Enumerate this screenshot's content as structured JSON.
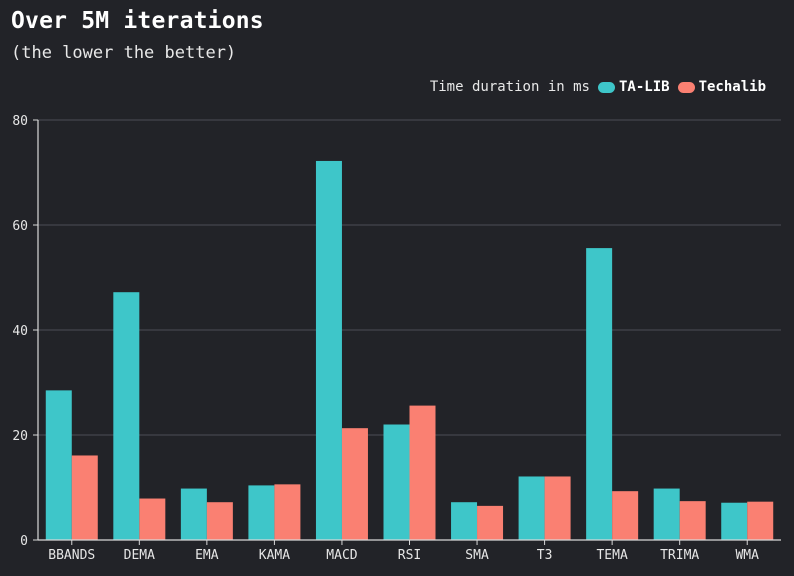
{
  "chart_data": {
    "type": "bar",
    "title": "Over 5M iterations",
    "subtitle": "(the lower the better)",
    "legend_title": "Time duration in ms",
    "legend_position": "top-right",
    "grid": true,
    "ylim": [
      0,
      80
    ],
    "yticks": [
      0,
      20,
      40,
      60,
      80
    ],
    "categories": [
      "BBANDS",
      "DEMA",
      "EMA",
      "KAMA",
      "MACD",
      "RSI",
      "SMA",
      "T3",
      "TEMA",
      "TRIMA",
      "WMA"
    ],
    "series": [
      {
        "name": "TA-LIB",
        "color": "#3ec6c9",
        "values": [
          28.5,
          47.2,
          9.8,
          10.4,
          72.2,
          22.0,
          7.2,
          12.1,
          55.6,
          9.8,
          7.1
        ]
      },
      {
        "name": "Techalib",
        "color": "#fa8072",
        "values": [
          16.1,
          7.9,
          7.2,
          10.6,
          21.3,
          25.6,
          6.5,
          12.1,
          9.3,
          7.4,
          7.3
        ]
      }
    ]
  }
}
